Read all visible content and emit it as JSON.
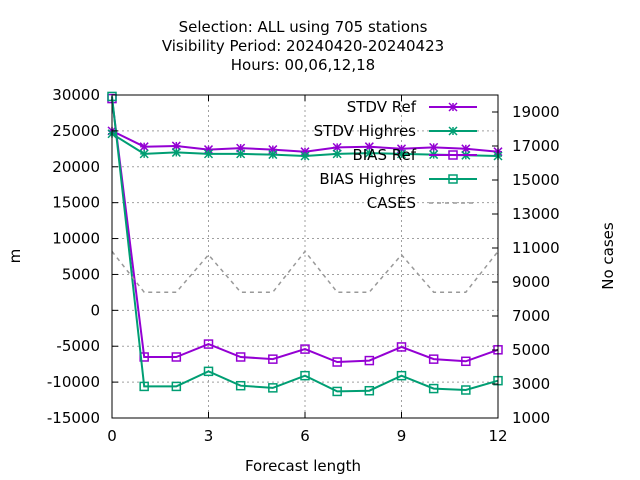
{
  "chart_data": {
    "type": "line",
    "title": [
      "Selection: ALL using   705 stations",
      "Visibility   Period: 20240420-20240423",
      "Hours:  00,06,12,18"
    ],
    "xlabel": "Forecast length",
    "ylabel": "m",
    "y2label": "No cases",
    "xlim": [
      0,
      12
    ],
    "ylim": [
      -15000,
      30000
    ],
    "y2lim": [
      1000,
      20000
    ],
    "xticks": [
      0,
      3,
      6,
      9,
      12
    ],
    "yticks": [
      -15000,
      -10000,
      -5000,
      0,
      5000,
      10000,
      15000,
      20000,
      25000,
      30000
    ],
    "y2ticks": [
      1000,
      3000,
      5000,
      7000,
      9000,
      11000,
      13000,
      15000,
      17000,
      19000
    ],
    "grid": true,
    "legend_position": "top-right",
    "x": [
      0,
      1,
      2,
      3,
      4,
      5,
      6,
      7,
      8,
      9,
      10,
      11,
      12
    ],
    "series": [
      {
        "name": "STDV Ref",
        "axis": "y",
        "marker": "star",
        "color": "#9400d3",
        "dash": "solid",
        "values": [
          25000,
          22800,
          22900,
          22400,
          22600,
          22400,
          22100,
          22700,
          22800,
          22500,
          22700,
          22500,
          22100
        ]
      },
      {
        "name": "STDV Highres",
        "axis": "y",
        "marker": "star",
        "color": "#009e73",
        "dash": "solid",
        "values": [
          24600,
          21800,
          22000,
          21800,
          21800,
          21700,
          21500,
          21800,
          21900,
          21800,
          21700,
          21600,
          21500
        ]
      },
      {
        "name": "BIAS Ref",
        "axis": "y",
        "marker": "square",
        "color": "#9400d3",
        "dash": "solid",
        "values": [
          29500,
          -6500,
          -6500,
          -4700,
          -6500,
          -6800,
          -5400,
          -7200,
          -7000,
          -5100,
          -6800,
          -7100,
          -5500
        ]
      },
      {
        "name": "BIAS Highres",
        "axis": "y",
        "marker": "square",
        "color": "#009e73",
        "dash": "solid",
        "values": [
          29800,
          -10600,
          -10600,
          -8500,
          -10500,
          -10800,
          -9100,
          -11300,
          -11200,
          -9100,
          -10900,
          -11100,
          -9800
        ]
      },
      {
        "name": "CASES",
        "axis": "y2",
        "marker": "none",
        "color": "#999999",
        "dash": "dashed",
        "values": [
          10800,
          8400,
          8400,
          10600,
          8400,
          8400,
          10800,
          8400,
          8400,
          10600,
          8400,
          8400,
          10800
        ]
      }
    ]
  }
}
